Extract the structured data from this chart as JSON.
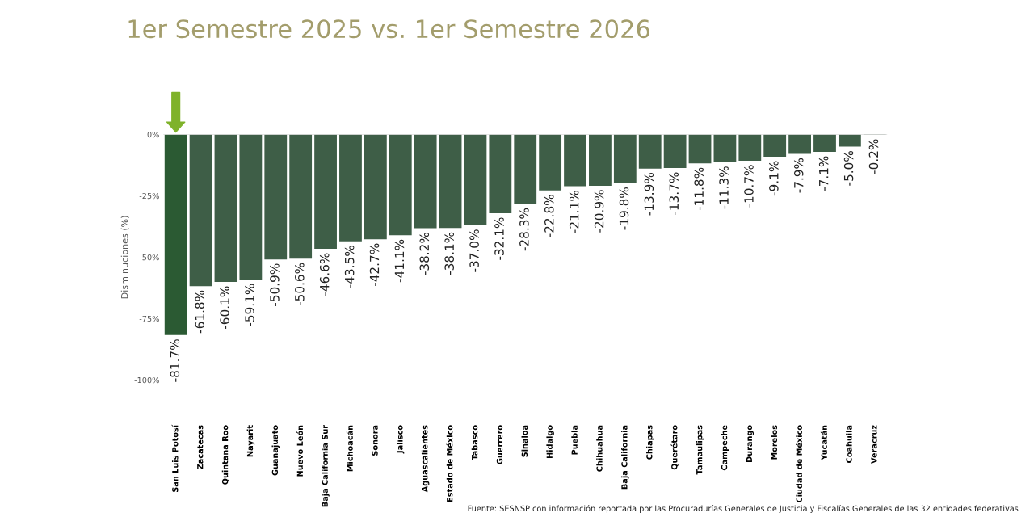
{
  "chart_data": {
    "type": "bar",
    "title": "1er Semestre 2025 vs. 1er Semestre 2026",
    "ylabel": "Disminuciones (%)",
    "categories": [
      "San Luis Potosí",
      "Zacatecas",
      "Quintana Roo",
      "Nayarit",
      "Guanajuato",
      "Nuevo León",
      "Baja California Sur",
      "Michoacán",
      "Sonora",
      "Jalisco",
      "Aguascalientes",
      "Estado de México",
      "Tabasco",
      "Guerrero",
      "Sinaloa",
      "Hidalgo",
      "Puebla",
      "Chihuahua",
      "Baja California",
      "Chiapas",
      "Querétaro",
      "Tamaulipas",
      "Campeche",
      "Durango",
      "Morelos",
      "Ciudad de México",
      "Yucatán",
      "Coahuila",
      "Veracruz"
    ],
    "values": [
      -81.7,
      -61.8,
      -60.1,
      -59.1,
      -50.9,
      -50.6,
      -46.6,
      -43.5,
      -42.7,
      -41.1,
      -38.2,
      -38.1,
      -37.0,
      -32.1,
      -28.3,
      -22.8,
      -21.1,
      -20.9,
      -19.8,
      -13.9,
      -13.7,
      -11.8,
      -11.3,
      -10.7,
      -9.1,
      -7.9,
      -7.1,
      -5.0,
      -0.2
    ],
    "colors": [
      "#2b5a33",
      "#3e5e47",
      "#3e5e47",
      "#3e5e47",
      "#3e5e47",
      "#3e5e47",
      "#3e5e47",
      "#3e5e47",
      "#3e5e47",
      "#3e5e47",
      "#3e5e47",
      "#3e5e47",
      "#3e5e47",
      "#3e5e47",
      "#3e5e47",
      "#3e5e47",
      "#3e5e47",
      "#3e5e47",
      "#3e5e47",
      "#3e5e47",
      "#3e5e47",
      "#3e5e47",
      "#3e5e47",
      "#3e5e47",
      "#3e5e47",
      "#3e5e47",
      "#3e5e47",
      "#3e5e47",
      "#3e5e47"
    ],
    "value_labels": [
      "-81.7%",
      "-61.8%",
      "-60.1%",
      "-59.1%",
      "-50.9%",
      "-50.6%",
      "-46.6%",
      "-43.5%",
      "-42.7%",
      "-41.1%",
      "-38.2%",
      "-38.1%",
      "-37.0%",
      "-32.1%",
      "-28.3%",
      "-22.8%",
      "-21.1%",
      "-20.9%",
      "-19.8%",
      "-13.9%",
      "-13.7%",
      "-11.8%",
      "-11.3%",
      "-10.7%",
      "-9.1%",
      "-7.9%",
      "-7.1%",
      "-5.0%",
      "-0.2%"
    ],
    "ylim": [
      -100,
      0
    ],
    "yticks": [
      {
        "value": 0,
        "label": "0%"
      },
      {
        "value": -25,
        "label": "-25%"
      },
      {
        "value": -50,
        "label": "-50%"
      },
      {
        "value": -75,
        "label": "-75%"
      },
      {
        "value": -100,
        "label": "-100%"
      }
    ],
    "grid": false,
    "annotations": [
      "Fuente: SESNSP con información reportada por las Procuradurías Generales de Justicia y Fiscalías Generales de las 32 entidades federativas"
    ]
  }
}
